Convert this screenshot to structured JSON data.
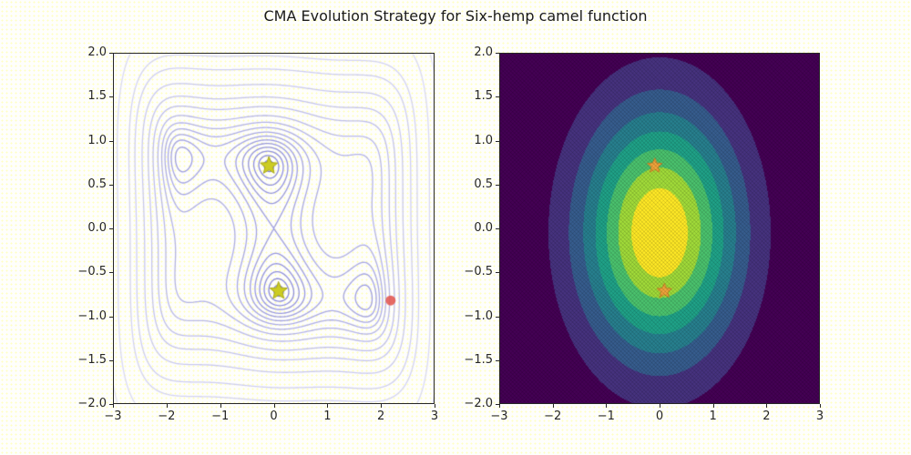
{
  "title": "CMA Evolution Strategy for Six-hemp camel function",
  "style": {
    "spine_color": "#262626",
    "tick_label_color": "#262626",
    "background": "#fefefc",
    "background_dot_color": "#ffffa0"
  },
  "chart_data": [
    {
      "id": "objective-contour",
      "type": "contour",
      "function": "six-hump camel: f(x,y) = (4 - 2.1x^2 + x^4/3)x^2 + xy + (-4 + 4y^2)y^2",
      "xlim": [
        -3,
        3
      ],
      "ylim": [
        -2,
        2
      ],
      "grid": "off",
      "xticks": {
        "values": [
          -3,
          -2,
          -1,
          0,
          1,
          2,
          3
        ],
        "labels": [
          "−3",
          "−2",
          "−1",
          "0",
          "1",
          "2",
          "3"
        ]
      },
      "yticks": {
        "values": [
          2,
          1.5,
          1,
          0.5,
          0,
          -0.5,
          -1,
          -1.5,
          -2
        ],
        "labels": [
          "2.0",
          "1.5",
          "1.0",
          "0.5",
          "0.0",
          "−0.5",
          "−1.0",
          "−1.5",
          "−2.0"
        ]
      },
      "levels": [
        -1.0,
        -0.9,
        -0.75,
        -0.55,
        -0.3,
        0.0,
        0.4,
        0.9,
        1.6,
        2.6,
        4.2,
        7,
        11,
        18,
        30,
        44,
        85,
        140
      ],
      "line_color_inner": "#8484d6",
      "line_color_outer": "#dedef5",
      "markers": {
        "global_minima": [
          {
            "x": -0.0898,
            "y": 0.7126
          },
          {
            "x": 0.0898,
            "y": -0.7126
          }
        ],
        "minima_marker": "star",
        "minima_color": "#cccc22",
        "minima_edge_color": "#a8a816",
        "current_point": {
          "x": 2.18,
          "y": -0.82,
          "marker": "circle",
          "color": "#e2564f"
        }
      }
    },
    {
      "id": "cma-distribution",
      "type": "filled_contour",
      "distribution": "CMA-ES multivariate normal density",
      "xlim": [
        -3,
        3
      ],
      "ylim": [
        -2,
        2
      ],
      "grid": "off",
      "xticks": {
        "values": [
          -3,
          -2,
          -1,
          0,
          1,
          2,
          3
        ],
        "labels": [
          "−3",
          "−2",
          "−1",
          "0",
          "1",
          "2",
          "3"
        ]
      },
      "yticks": {
        "values": [
          2,
          1.5,
          1,
          0.5,
          0,
          -0.5,
          -1,
          -1.5,
          -2
        ],
        "labels": [
          "2.0",
          "1.5",
          "1.0",
          "0.5",
          "0.0",
          "−0.5",
          "−1.0",
          "−1.5",
          "−2.0"
        ]
      },
      "gaussian": {
        "center": [
          0.0,
          -0.05
        ],
        "sigma": [
          1.02,
          0.98
        ]
      },
      "n_bands": 8,
      "band_colors": [
        "#440154",
        "#46327e",
        "#365c8d",
        "#277f8e",
        "#1fa187",
        "#4ac16d",
        "#a0da39",
        "#fde725"
      ],
      "markers": {
        "global_minima": [
          {
            "x": -0.0898,
            "y": 0.7126
          },
          {
            "x": 0.0898,
            "y": -0.7126
          }
        ],
        "minima_marker": "star",
        "minima_color": "#f0a43c",
        "minima_edge_color": "#cd8427"
      }
    }
  ]
}
